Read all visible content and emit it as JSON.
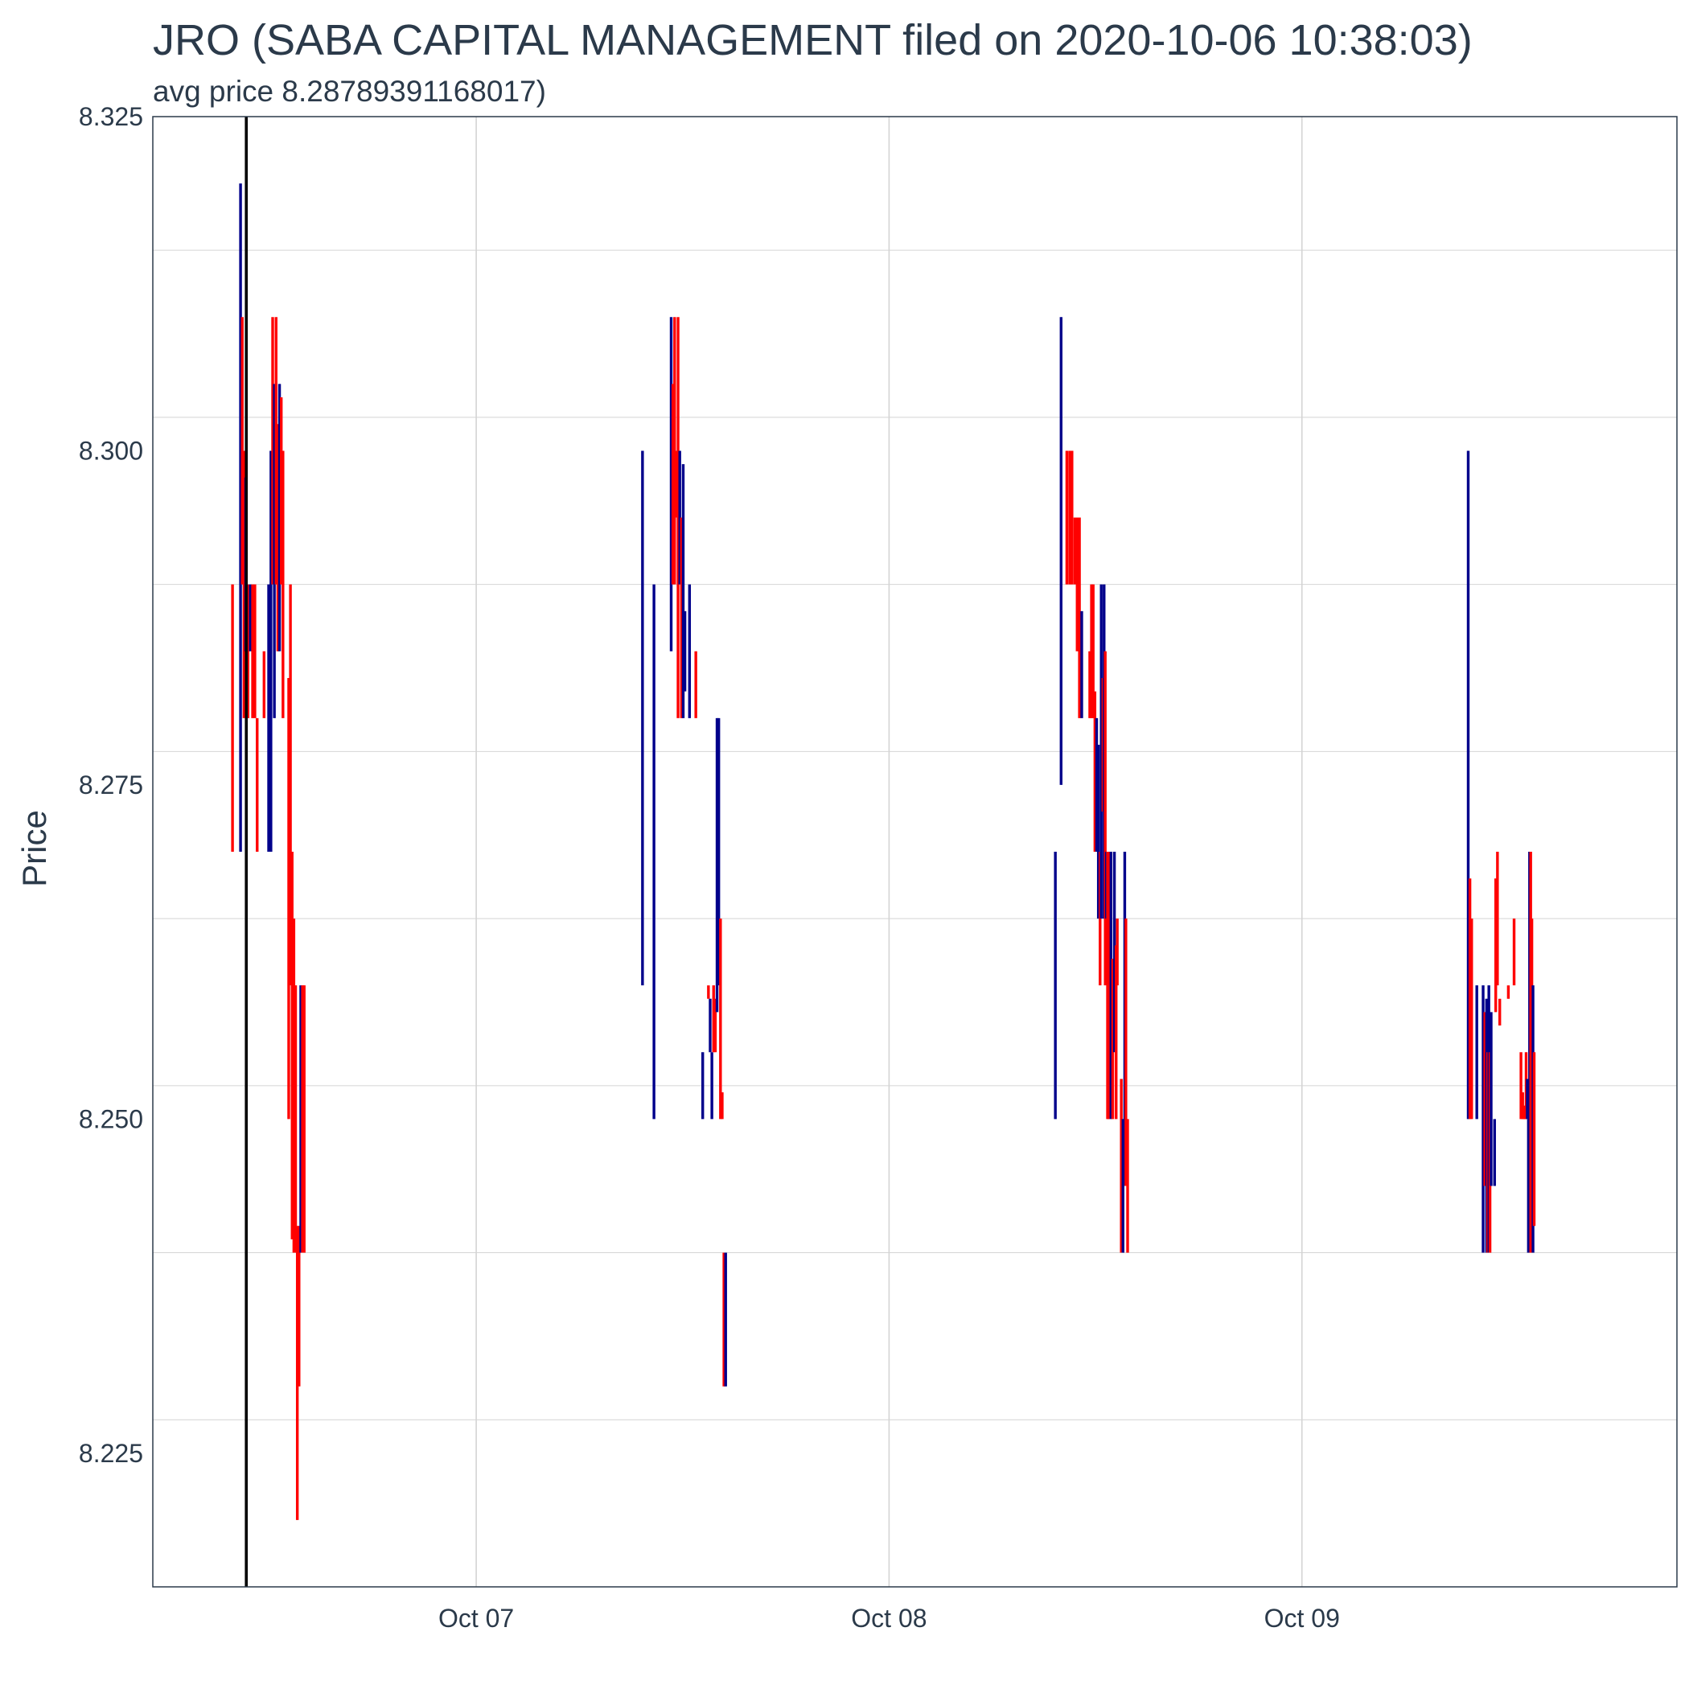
{
  "chart_data": {
    "type": "bar",
    "subtype": "ohlc",
    "title": "JRO (SABA CAPITAL MANAGEMENT filed on 2020-10-06 10:38:03)",
    "subtitle": "avg price 8.28789391168017)",
    "ylabel": "Price",
    "xlabel": "",
    "ylim": [
      8.215,
      8.325
    ],
    "xlim": [
      "2020-10-06 05:12",
      "2020-10-09 21:48"
    ],
    "y_ticks": [
      "8.225",
      "8.250",
      "8.275",
      "8.300",
      "8.325"
    ],
    "x_ticks": [
      {
        "t": "2020-10-07 00:00",
        "label": "Oct 07"
      },
      {
        "t": "2020-10-08 00:00",
        "label": "Oct 08"
      },
      {
        "t": "2020-10-09 00:00",
        "label": "Oct 09"
      }
    ],
    "filing_marker": "2020-10-06 10:38:03",
    "grid": true,
    "colors": {
      "up": "#00008b",
      "down": "#ff0000",
      "marker": "#000000",
      "grid": "#d4d4d4",
      "frame": "#2b3a4a"
    },
    "series": [
      {
        "t": "2020-10-06 09:50",
        "low": 8.27,
        "high": 8.29,
        "dir": "down"
      },
      {
        "t": "2020-10-06 10:18",
        "low": 8.27,
        "high": 8.32,
        "dir": "up"
      },
      {
        "t": "2020-10-06 10:24",
        "low": 8.29,
        "high": 8.31,
        "dir": "down"
      },
      {
        "t": "2020-10-06 10:30",
        "low": 8.28,
        "high": 8.3,
        "dir": "down"
      },
      {
        "t": "2020-10-06 10:36",
        "low": 8.285,
        "high": 8.298,
        "dir": "up"
      },
      {
        "t": "2020-10-06 10:44",
        "low": 8.28,
        "high": 8.29,
        "dir": "down"
      },
      {
        "t": "2020-10-06 10:52",
        "low": 8.285,
        "high": 8.29,
        "dir": "up"
      },
      {
        "t": "2020-10-06 11:00",
        "low": 8.28,
        "high": 8.29,
        "dir": "down"
      },
      {
        "t": "2020-10-06 11:08",
        "low": 8.28,
        "high": 8.29,
        "dir": "down"
      },
      {
        "t": "2020-10-06 11:16",
        "low": 8.27,
        "high": 8.28,
        "dir": "down"
      },
      {
        "t": "2020-10-06 11:40",
        "low": 8.28,
        "high": 8.285,
        "dir": "down"
      },
      {
        "t": "2020-10-06 11:56",
        "low": 8.27,
        "high": 8.29,
        "dir": "up"
      },
      {
        "t": "2020-10-06 12:04",
        "low": 8.27,
        "high": 8.3,
        "dir": "up"
      },
      {
        "t": "2020-10-06 12:10",
        "low": 8.29,
        "high": 8.31,
        "dir": "down"
      },
      {
        "t": "2020-10-06 12:16",
        "low": 8.28,
        "high": 8.305,
        "dir": "up"
      },
      {
        "t": "2020-10-06 12:22",
        "low": 8.29,
        "high": 8.31,
        "dir": "down"
      },
      {
        "t": "2020-10-06 12:28",
        "low": 8.285,
        "high": 8.302,
        "dir": "down"
      },
      {
        "t": "2020-10-06 12:34",
        "low": 8.285,
        "high": 8.305,
        "dir": "up"
      },
      {
        "t": "2020-10-06 12:40",
        "low": 8.29,
        "high": 8.304,
        "dir": "down"
      },
      {
        "t": "2020-10-06 12:46",
        "low": 8.28,
        "high": 8.3,
        "dir": "down"
      },
      {
        "t": "2020-10-06 13:06",
        "low": 8.25,
        "high": 8.283,
        "dir": "down"
      },
      {
        "t": "2020-10-06 13:12",
        "low": 8.26,
        "high": 8.29,
        "dir": "down"
      },
      {
        "t": "2020-10-06 13:18",
        "low": 8.241,
        "high": 8.27,
        "dir": "down"
      },
      {
        "t": "2020-10-06 13:24",
        "low": 8.24,
        "high": 8.265,
        "dir": "down"
      },
      {
        "t": "2020-10-06 13:30",
        "low": 8.24,
        "high": 8.26,
        "dir": "down"
      },
      {
        "t": "2020-10-06 13:36",
        "low": 8.22,
        "high": 8.242,
        "dir": "down"
      },
      {
        "t": "2020-10-06 13:42",
        "low": 8.23,
        "high": 8.242,
        "dir": "down"
      },
      {
        "t": "2020-10-06 13:48",
        "low": 8.24,
        "high": 8.26,
        "dir": "up"
      },
      {
        "t": "2020-10-06 13:54",
        "low": 8.24,
        "high": 8.26,
        "dir": "down"
      },
      {
        "t": "2020-10-06 14:00",
        "low": 8.24,
        "high": 8.26,
        "dir": "down"
      },
      {
        "t": "2020-10-07 09:40",
        "low": 8.26,
        "high": 8.3,
        "dir": "up"
      },
      {
        "t": "2020-10-07 10:20",
        "low": 8.25,
        "high": 8.29,
        "dir": "up"
      },
      {
        "t": "2020-10-07 11:20",
        "low": 8.285,
        "high": 8.31,
        "dir": "up"
      },
      {
        "t": "2020-10-07 11:26",
        "low": 8.29,
        "high": 8.305,
        "dir": "down"
      },
      {
        "t": "2020-10-07 11:32",
        "low": 8.29,
        "high": 8.31,
        "dir": "down"
      },
      {
        "t": "2020-10-07 11:38",
        "low": 8.295,
        "high": 8.3,
        "dir": "down"
      },
      {
        "t": "2020-10-07 11:44",
        "low": 8.28,
        "high": 8.31,
        "dir": "down"
      },
      {
        "t": "2020-10-07 11:50",
        "low": 8.29,
        "high": 8.3,
        "dir": "up"
      },
      {
        "t": "2020-10-07 11:56",
        "low": 8.28,
        "high": 8.295,
        "dir": "down"
      },
      {
        "t": "2020-10-07 12:02",
        "low": 8.28,
        "high": 8.299,
        "dir": "up"
      },
      {
        "t": "2020-10-07 12:08",
        "low": 8.282,
        "high": 8.288,
        "dir": "up"
      },
      {
        "t": "2020-10-07 12:24",
        "low": 8.28,
        "high": 8.29,
        "dir": "up"
      },
      {
        "t": "2020-10-07 12:46",
        "low": 8.28,
        "high": 8.285,
        "dir": "down"
      },
      {
        "t": "2020-10-07 13:10",
        "low": 8.25,
        "high": 8.255,
        "dir": "up"
      },
      {
        "t": "2020-10-07 13:30",
        "low": 8.259,
        "high": 8.26,
        "dir": "down"
      },
      {
        "t": "2020-10-07 13:36",
        "low": 8.255,
        "high": 8.259,
        "dir": "up"
      },
      {
        "t": "2020-10-07 13:42",
        "low": 8.25,
        "high": 8.255,
        "dir": "up"
      },
      {
        "t": "2020-10-07 13:48",
        "low": 8.255,
        "high": 8.26,
        "dir": "down"
      },
      {
        "t": "2020-10-07 13:54",
        "low": 8.255,
        "high": 8.259,
        "dir": "down"
      },
      {
        "t": "2020-10-07 14:00",
        "low": 8.258,
        "high": 8.28,
        "dir": "up"
      },
      {
        "t": "2020-10-07 14:06",
        "low": 8.26,
        "high": 8.28,
        "dir": "up"
      },
      {
        "t": "2020-10-07 14:12",
        "low": 8.25,
        "high": 8.265,
        "dir": "down"
      },
      {
        "t": "2020-10-07 14:18",
        "low": 8.25,
        "high": 8.252,
        "dir": "down"
      },
      {
        "t": "2020-10-07 14:24",
        "low": 8.23,
        "high": 8.24,
        "dir": "down"
      },
      {
        "t": "2020-10-07 14:30",
        "low": 8.23,
        "high": 8.24,
        "dir": "up"
      },
      {
        "t": "2020-10-08 09:40",
        "low": 8.25,
        "high": 8.27,
        "dir": "up"
      },
      {
        "t": "2020-10-08 10:00",
        "low": 8.275,
        "high": 8.31,
        "dir": "up"
      },
      {
        "t": "2020-10-08 10:20",
        "low": 8.29,
        "high": 8.3,
        "dir": "down"
      },
      {
        "t": "2020-10-08 10:30",
        "low": 8.29,
        "high": 8.3,
        "dir": "down"
      },
      {
        "t": "2020-10-08 10:38",
        "low": 8.29,
        "high": 8.3,
        "dir": "down"
      },
      {
        "t": "2020-10-08 10:48",
        "low": 8.29,
        "high": 8.295,
        "dir": "down"
      },
      {
        "t": "2020-10-08 10:56",
        "low": 8.285,
        "high": 8.295,
        "dir": "down"
      },
      {
        "t": "2020-10-08 11:04",
        "low": 8.28,
        "high": 8.295,
        "dir": "down"
      },
      {
        "t": "2020-10-08 11:12",
        "low": 8.28,
        "high": 8.288,
        "dir": "up"
      },
      {
        "t": "2020-10-08 11:40",
        "low": 8.28,
        "high": 8.285,
        "dir": "down"
      },
      {
        "t": "2020-10-08 11:46",
        "low": 8.28,
        "high": 8.29,
        "dir": "down"
      },
      {
        "t": "2020-10-08 11:52",
        "low": 8.28,
        "high": 8.29,
        "dir": "down"
      },
      {
        "t": "2020-10-08 11:58",
        "low": 8.27,
        "high": 8.282,
        "dir": "down"
      },
      {
        "t": "2020-10-08 12:04",
        "low": 8.27,
        "high": 8.28,
        "dir": "up"
      },
      {
        "t": "2020-10-08 12:10",
        "low": 8.265,
        "high": 8.278,
        "dir": "up"
      },
      {
        "t": "2020-10-08 12:16",
        "low": 8.26,
        "high": 8.27,
        "dir": "down"
      },
      {
        "t": "2020-10-08 12:20",
        "low": 8.265,
        "high": 8.29,
        "dir": "up"
      },
      {
        "t": "2020-10-08 12:26",
        "low": 8.273,
        "high": 8.283,
        "dir": "down"
      },
      {
        "t": "2020-10-08 12:30",
        "low": 8.265,
        "high": 8.29,
        "dir": "up"
      },
      {
        "t": "2020-10-08 12:34",
        "low": 8.26,
        "high": 8.285,
        "dir": "down"
      },
      {
        "t": "2020-10-08 12:38",
        "low": 8.265,
        "high": 8.27,
        "dir": "up"
      },
      {
        "t": "2020-10-08 12:42",
        "low": 8.25,
        "high": 8.27,
        "dir": "down"
      },
      {
        "t": "2020-10-08 12:46",
        "low": 8.25,
        "high": 8.265,
        "dir": "down"
      },
      {
        "t": "2020-10-08 12:50",
        "low": 8.252,
        "high": 8.27,
        "dir": "down"
      },
      {
        "t": "2020-10-08 12:54",
        "low": 8.25,
        "high": 8.27,
        "dir": "up"
      },
      {
        "t": "2020-10-08 13:00",
        "low": 8.25,
        "high": 8.262,
        "dir": "down"
      },
      {
        "t": "2020-10-08 13:06",
        "low": 8.255,
        "high": 8.27,
        "dir": "up"
      },
      {
        "t": "2020-10-08 13:12",
        "low": 8.25,
        "high": 8.263,
        "dir": "down"
      },
      {
        "t": "2020-10-08 13:16",
        "low": 8.26,
        "high": 8.265,
        "dir": "down"
      },
      {
        "t": "2020-10-08 13:30",
        "low": 8.24,
        "high": 8.253,
        "dir": "down"
      },
      {
        "t": "2020-10-08 13:36",
        "low": 8.24,
        "high": 8.25,
        "dir": "up"
      },
      {
        "t": "2020-10-08 13:42",
        "low": 8.245,
        "high": 8.27,
        "dir": "up"
      },
      {
        "t": "2020-10-08 13:46",
        "low": 8.245,
        "high": 8.265,
        "dir": "down"
      },
      {
        "t": "2020-10-08 13:52",
        "low": 8.24,
        "high": 8.25,
        "dir": "down"
      },
      {
        "t": "2020-10-09 09:40",
        "low": 8.25,
        "high": 8.3,
        "dir": "up"
      },
      {
        "t": "2020-10-09 09:46",
        "low": 8.25,
        "high": 8.268,
        "dir": "down"
      },
      {
        "t": "2020-10-09 09:52",
        "low": 8.25,
        "high": 8.265,
        "dir": "down"
      },
      {
        "t": "2020-10-09 10:10",
        "low": 8.25,
        "high": 8.26,
        "dir": "up"
      },
      {
        "t": "2020-10-09 10:32",
        "low": 8.24,
        "high": 8.26,
        "dir": "up"
      },
      {
        "t": "2020-10-09 10:38",
        "low": 8.245,
        "high": 8.258,
        "dir": "down"
      },
      {
        "t": "2020-10-09 10:44",
        "low": 8.24,
        "high": 8.259,
        "dir": "up"
      },
      {
        "t": "2020-10-09 10:48",
        "low": 8.24,
        "high": 8.255,
        "dir": "down"
      },
      {
        "t": "2020-10-09 10:52",
        "low": 8.24,
        "high": 8.26,
        "dir": "up"
      },
      {
        "t": "2020-10-09 10:56",
        "low": 8.24,
        "high": 8.255,
        "dir": "down"
      },
      {
        "t": "2020-10-09 11:00",
        "low": 8.245,
        "high": 8.258,
        "dir": "up"
      },
      {
        "t": "2020-10-09 11:12",
        "low": 8.245,
        "high": 8.25,
        "dir": "up"
      },
      {
        "t": "2020-10-09 11:16",
        "low": 8.258,
        "high": 8.268,
        "dir": "down"
      },
      {
        "t": "2020-10-09 11:22",
        "low": 8.26,
        "high": 8.27,
        "dir": "down"
      },
      {
        "t": "2020-10-09 11:30",
        "low": 8.257,
        "high": 8.259,
        "dir": "down"
      },
      {
        "t": "2020-10-09 12:00",
        "low": 8.259,
        "high": 8.26,
        "dir": "down"
      },
      {
        "t": "2020-10-09 12:20",
        "low": 8.26,
        "high": 8.265,
        "dir": "down"
      },
      {
        "t": "2020-10-09 12:44",
        "low": 8.25,
        "high": 8.255,
        "dir": "down"
      },
      {
        "t": "2020-10-09 12:50",
        "low": 8.25,
        "high": 8.252,
        "dir": "down"
      },
      {
        "t": "2020-10-09 12:54",
        "low": 8.25,
        "high": 8.251,
        "dir": "down"
      },
      {
        "t": "2020-10-09 12:58",
        "low": 8.25,
        "high": 8.251,
        "dir": "down"
      },
      {
        "t": "2020-10-09 13:02",
        "low": 8.25,
        "high": 8.255,
        "dir": "down"
      },
      {
        "t": "2020-10-09 13:06",
        "low": 8.25,
        "high": 8.253,
        "dir": "up"
      },
      {
        "t": "2020-10-09 13:10",
        "low": 8.24,
        "high": 8.25,
        "dir": "up"
      },
      {
        "t": "2020-10-09 13:14",
        "low": 8.245,
        "high": 8.27,
        "dir": "up"
      },
      {
        "t": "2020-10-09 13:18",
        "low": 8.24,
        "high": 8.27,
        "dir": "down"
      },
      {
        "t": "2020-10-09 13:22",
        "low": 8.242,
        "high": 8.265,
        "dir": "down"
      },
      {
        "t": "2020-10-09 13:26",
        "low": 8.24,
        "high": 8.26,
        "dir": "up"
      },
      {
        "t": "2020-10-09 13:30",
        "low": 8.242,
        "high": 8.255,
        "dir": "down"
      }
    ]
  }
}
